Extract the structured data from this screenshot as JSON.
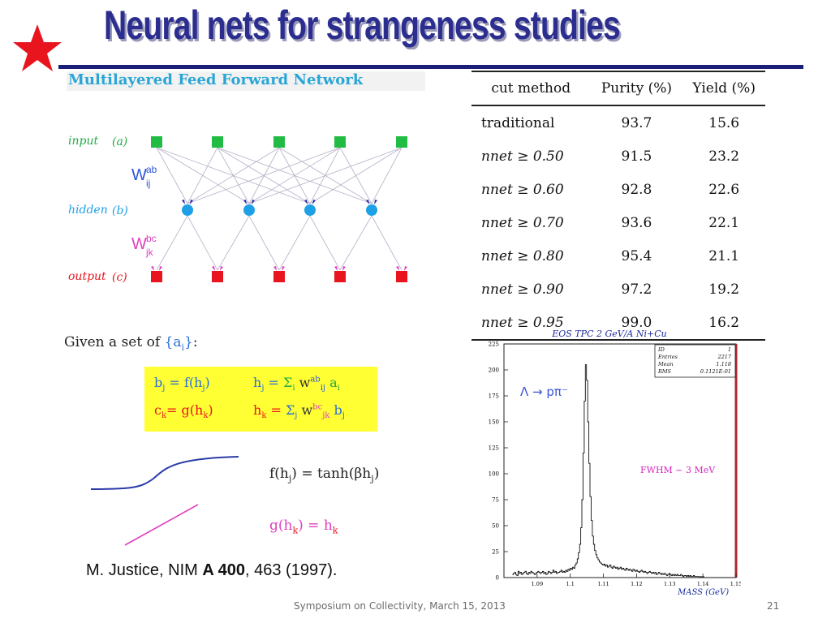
{
  "slide": {
    "title": "Neural nets for strangeness studies",
    "footer": "Symposium on Collectivity, March 15, 2013",
    "page_number": "21",
    "colors": {
      "title": "#2b2e8f",
      "star": "#e8141e",
      "rule": "#1a1f7a"
    }
  },
  "network": {
    "heading": "Multilayered Feed Forward Network",
    "layers": [
      {
        "name": "input",
        "tag": "(a)",
        "color": "#22bb44",
        "nodes": 5,
        "shape": "square"
      },
      {
        "name": "hidden",
        "tag": "(b)",
        "color": "#1ea0e6",
        "nodes": 4,
        "shape": "circle"
      },
      {
        "name": "output",
        "tag": "(c)",
        "color": "#e8141e",
        "nodes": 5,
        "shape": "square"
      }
    ],
    "weights": [
      {
        "base": "W",
        "sup": "ab",
        "sub": "ij",
        "color": "#2a55d6"
      },
      {
        "base": "W",
        "sup": "bc",
        "sub": "jk",
        "color": "#e040c0"
      }
    ]
  },
  "formulas": {
    "given_prefix": "Given a set of",
    "given_set": "{a",
    "given_set_sub": "i",
    "given_set_close": "}",
    "given_suffix": ":",
    "b_eq": {
      "lhs": "b",
      "lhs_sub": "j",
      "mid": " =  f(h",
      "mid_sub": "j",
      "close": ")"
    },
    "h_eq": {
      "lhs": "h",
      "lhs_sub": "j",
      "eq": " = ",
      "sum": "Σ",
      "sum_sub": "i",
      "w": "w",
      "w_sup": "ab",
      "w_sub": "ij",
      "rhs": " a",
      "rhs_sub": "i"
    },
    "c_eq": {
      "lhs": "c",
      "lhs_sub": "k",
      "mid": "=  g(h",
      "mid_sub": "k",
      "close": ")"
    },
    "hk_eq": {
      "lhs": "h",
      "lhs_sub": "k",
      "eq": " = ",
      "sum": "Σ",
      "sum_sub": "j",
      "w": "w",
      "w_sup": "bc",
      "w_sub": "jk",
      "rhs": " b",
      "rhs_sub": "j"
    },
    "f_def": {
      "lhs": "f(h",
      "lhs_sub": "j",
      "mid": ")  = tanh(βh",
      "mid_sub": "j",
      "close": ")"
    },
    "g_def": {
      "lhs": "g(h",
      "lhs_sub": "k",
      "mid": ")  = h",
      "mid_sub": "k"
    }
  },
  "reference": {
    "authors": "M. Justice, NIM ",
    "volume": "A 400",
    "rest": ", 463 (1997)."
  },
  "table": {
    "headers": [
      "cut method",
      "Purity (%)",
      "Yield (%)"
    ],
    "rows": [
      {
        "method": "traditional",
        "purity": "93.7",
        "yield": "15.6"
      },
      {
        "method": "nnet ≥ 0.50",
        "purity": "91.5",
        "yield": "23.2"
      },
      {
        "method": "nnet ≥ 0.60",
        "purity": "92.8",
        "yield": "22.6"
      },
      {
        "method": "nnet ≥ 0.70",
        "purity": "93.6",
        "yield": "22.1"
      },
      {
        "method": "nnet ≥ 0.80",
        "purity": "95.4",
        "yield": "21.1"
      },
      {
        "method": "nnet ≥ 0.90",
        "purity": "97.2",
        "yield": "19.2"
      },
      {
        "method": "nnet ≥ 0.95",
        "purity": "99.0",
        "yield": "16.2"
      }
    ]
  },
  "chart_data": {
    "type": "histogram",
    "title": "EOS TPC 2 GeV/A  Ni+Cu",
    "xlabel": "MASS (GeV)",
    "ylabel": "",
    "xlim": [
      1.08,
      1.15
    ],
    "ylim": [
      0,
      225
    ],
    "xticks": [
      "1.09",
      "1.1",
      "1.11",
      "1.12",
      "1.13",
      "1.14",
      "1.15"
    ],
    "yticks": [
      "0",
      "25",
      "50",
      "75",
      "100",
      "125",
      "150",
      "175",
      "200",
      "225"
    ],
    "annotations": [
      "Λ  →  pπ⁻",
      "FWHM ~ 3 MeV"
    ],
    "stats": [
      [
        "ID",
        "1"
      ],
      [
        "Entries",
        "2217"
      ],
      [
        "Mean",
        "1.118"
      ],
      [
        "RMS",
        "0.1121E-01"
      ]
    ],
    "bin_width": 0.00035,
    "x_start": 1.0825,
    "values": [
      3,
      4,
      5,
      3,
      2,
      6,
      4,
      5,
      3,
      4,
      5,
      6,
      4,
      3,
      5,
      4,
      6,
      5,
      4,
      3,
      4,
      5,
      6,
      5,
      4,
      5,
      6,
      4,
      5,
      3,
      4,
      6,
      5,
      4,
      5,
      7,
      5,
      6,
      4,
      5,
      5,
      6,
      7,
      5,
      6,
      5,
      7,
      6,
      8,
      7,
      9,
      8,
      10,
      9,
      12,
      14,
      18,
      24,
      32,
      48,
      75,
      120,
      170,
      205,
      190,
      150,
      110,
      78,
      55,
      40,
      32,
      26,
      22,
      19,
      17,
      15,
      14,
      13,
      12,
      13,
      11,
      12,
      10,
      11,
      12,
      10,
      9,
      11,
      10,
      9,
      10,
      8,
      9,
      10,
      8,
      9,
      8,
      7,
      9,
      8,
      7,
      8,
      7,
      6,
      8,
      7,
      6,
      7,
      6,
      5,
      6,
      7,
      6,
      5,
      6,
      5,
      4,
      5,
      6,
      5,
      4,
      5,
      4,
      5,
      3,
      4,
      5,
      4,
      3,
      4,
      3,
      4,
      3,
      2,
      3,
      4,
      3,
      2,
      3,
      2,
      3,
      2,
      3,
      2,
      2,
      3,
      2,
      1,
      2,
      2,
      1,
      2,
      1,
      2,
      1,
      1,
      2,
      1,
      1,
      1,
      1,
      0,
      1,
      0,
      1,
      0,
      0,
      0,
      0,
      0,
      0,
      0,
      0,
      0,
      0,
      0,
      0,
      0,
      0,
      0,
      0,
      0,
      0,
      0,
      0,
      0,
      0,
      0,
      0,
      0,
      0,
      0,
      0,
      0,
      0,
      0
    ]
  }
}
